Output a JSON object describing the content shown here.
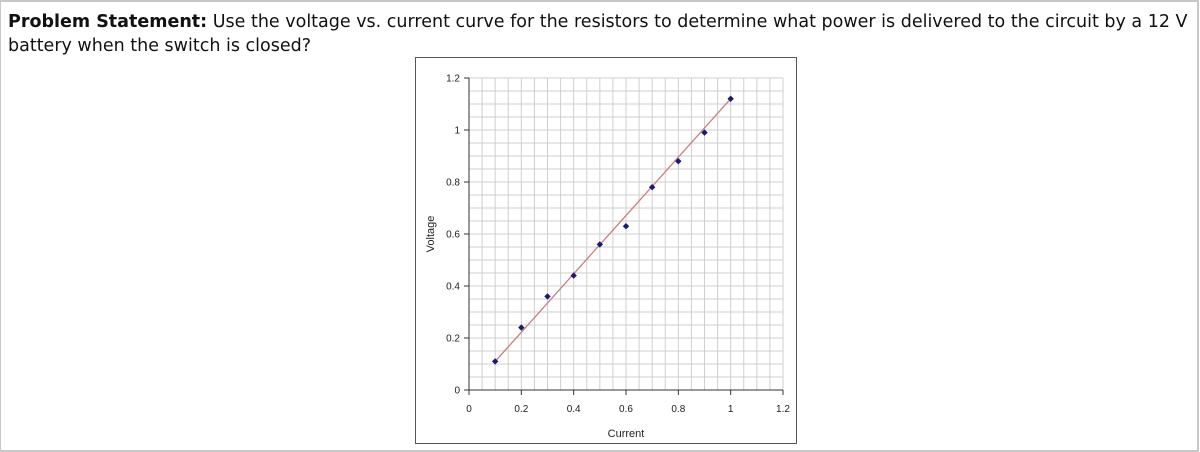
{
  "problem": {
    "heading": "Problem Statement:",
    "text": "Use the voltage vs. current curve for the resistors to determine what power is delivered to the circuit by a 12 V battery when the switch is closed?"
  },
  "chart_data": {
    "type": "scatter",
    "xlabel": "Current",
    "ylabel": "Voltage",
    "xlim": [
      0,
      1.2
    ],
    "ylim": [
      0,
      1.2
    ],
    "x_ticks": [
      "0",
      "0.2",
      "0.4",
      "0.6",
      "0.8",
      "1",
      "1.2"
    ],
    "y_ticks": [
      "0",
      "0.2",
      "0.4",
      "0.6",
      "0.8",
      "1",
      "1.2"
    ],
    "grid": true,
    "legend": "none",
    "series": [
      {
        "points": [
          [
            0.1,
            0.11
          ],
          [
            0.2,
            0.24
          ],
          [
            0.3,
            0.36
          ],
          [
            0.4,
            0.44
          ],
          [
            0.5,
            0.56
          ],
          [
            0.6,
            0.63
          ],
          [
            0.7,
            0.78
          ],
          [
            0.8,
            0.88
          ],
          [
            0.9,
            0.99
          ],
          [
            1.0,
            1.12
          ]
        ],
        "color": "#1a1a6e"
      }
    ],
    "trendline": {
      "from": [
        0.1,
        0.11
      ],
      "to": [
        1.0,
        1.12
      ],
      "color": "#c98080"
    }
  }
}
